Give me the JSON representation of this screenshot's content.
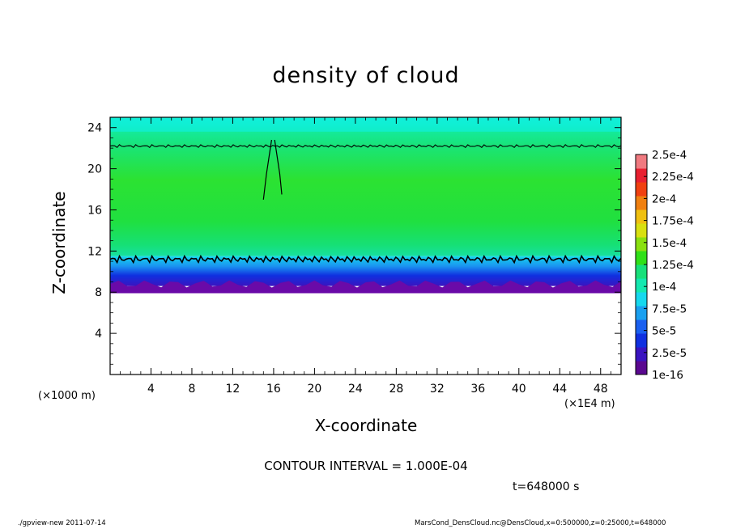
{
  "chart_data": {
    "type": "heatmap",
    "title": "density of cloud",
    "xlabel": "X-coordinate",
    "ylabel": "Z-coordinate",
    "x_unit_note": "(×1E4 m)",
    "y_unit_note": "(×1000 m)",
    "xlim": [
      0,
      50
    ],
    "ylim": [
      0,
      25
    ],
    "xticks": [
      4,
      8,
      12,
      16,
      20,
      24,
      28,
      32,
      36,
      40,
      44,
      48
    ],
    "yticks": [
      4,
      8,
      12,
      16,
      20,
      24
    ],
    "colorbar": {
      "labels": [
        "1e-16",
        "2.5e-5",
        "5e-5",
        "7.5e-5",
        "1e-4",
        "1.25e-4",
        "1.5e-4",
        "1.75e-4",
        "2e-4",
        "2.25e-4",
        "2.5e-4"
      ],
      "colors": [
        "#6a0aa8",
        "#0a1ee0",
        "#1f6ff0",
        "#16d8ee",
        "#18e07a",
        "#30e018",
        "#8ae010",
        "#e8e010",
        "#f0a010",
        "#f04010",
        "#f07a80"
      ]
    },
    "layers": [
      {
        "z_min": 0,
        "z_max": 8,
        "value": "none"
      },
      {
        "z_min": 8,
        "z_max": 8.7,
        "value": "1e-16"
      },
      {
        "z_min": 8.7,
        "z_max": 9.5,
        "value": "2.5e-5"
      },
      {
        "z_min": 9.5,
        "z_max": 10.5,
        "value": "5e-5"
      },
      {
        "z_min": 10.5,
        "z_max": 11.5,
        "value": "7.5e-5"
      },
      {
        "z_min": 11.5,
        "z_max": 22,
        "value": "1e-4"
      },
      {
        "z_min": 22,
        "z_max": 23.5,
        "value": "7.5e-5"
      },
      {
        "z_min": 23.5,
        "z_max": 25,
        "value": "7.5e-5"
      }
    ],
    "contour_lines_z": [
      11.2,
      22.2
    ],
    "grid": false
  },
  "annotations": {
    "contour_interval": "CONTOUR INTERVAL = 1.000E-04",
    "time": "t=648000 s",
    "footer_left": "./gpview-new   2011-07-14",
    "footer_right": "MarsCond_DensCloud.nc@DensCloud,x=0:500000,z=0:25000,t=648000"
  }
}
